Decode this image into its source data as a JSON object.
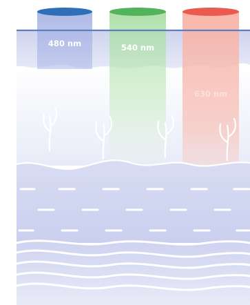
{
  "diagram": {
    "beams": [
      {
        "label": "480 nm",
        "color": "#2f6fb8"
      },
      {
        "label": "540 nm",
        "color": "#52b35a"
      },
      {
        "label": "630 nm",
        "color": "#ea5a4e"
      }
    ],
    "colors": {
      "surface_line": "#5b7fbf",
      "tissue": "#dfe3f6",
      "layer_line": "#ffffff"
    }
  }
}
